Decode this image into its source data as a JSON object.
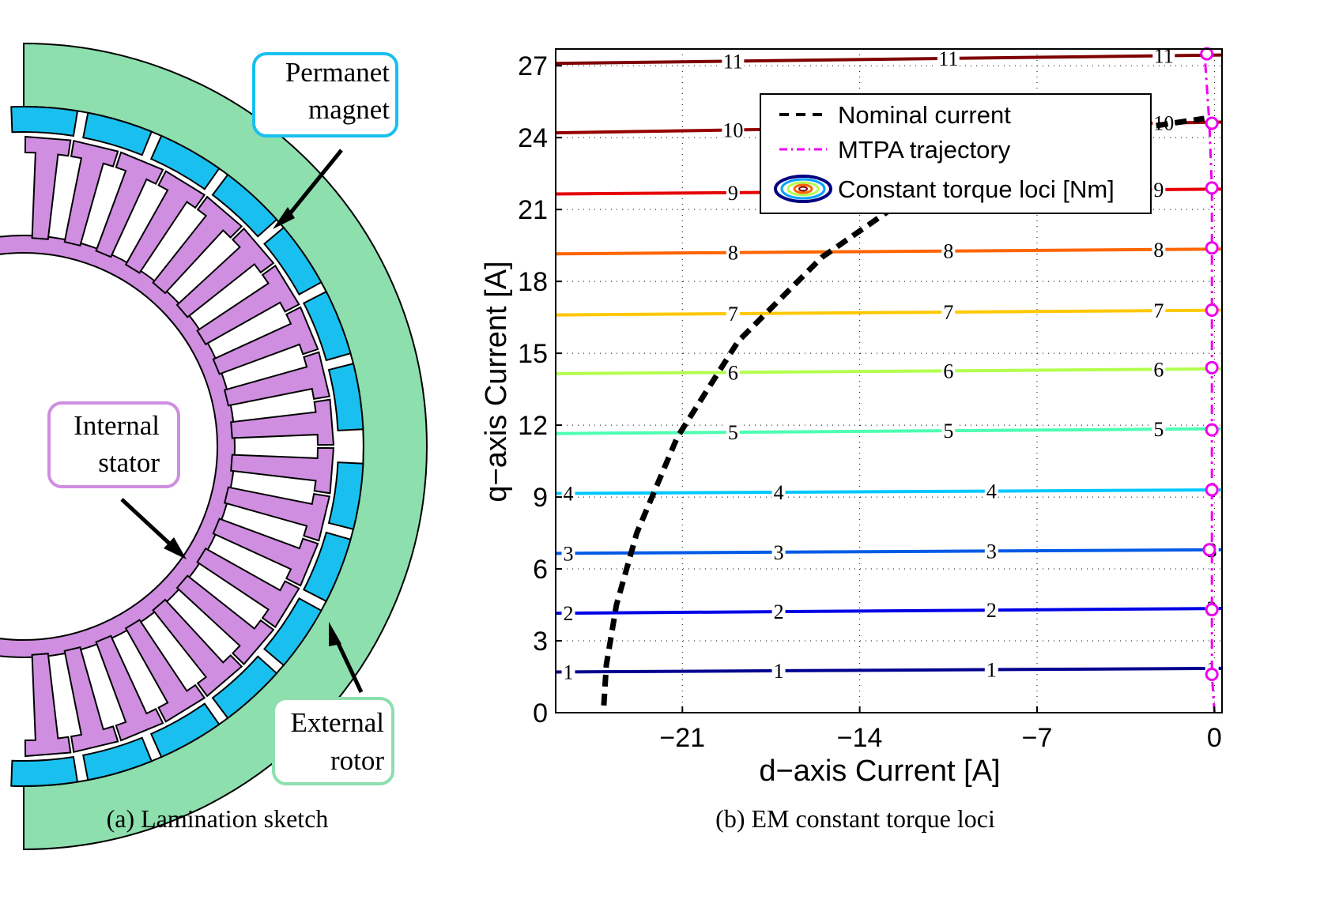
{
  "panel_a": {
    "caption": "(a) Lamination sketch",
    "labels": {
      "permanent_magnet": [
        "Permanet",
        "magnet"
      ],
      "internal_stator": [
        "Internal",
        "stator"
      ],
      "external_rotor": [
        "External",
        "rotor"
      ]
    },
    "colors": {
      "rotor": "#8ddfae",
      "magnet": "#19c0ef",
      "stator": "#cf8ee0",
      "permanent_magnet_box": "#19c0ef",
      "internal_stator_box": "#cf8ee0",
      "external_rotor_box": "#8ddfae"
    }
  },
  "panel_b": {
    "caption": "(b) EM constant torque loci",
    "chart_data": {
      "type": "line",
      "xlabel": "d−axis Current [A]",
      "ylabel": "q−axis Current [A]",
      "xlim": [
        -26,
        0.3
      ],
      "ylim": [
        0,
        27.7
      ],
      "xticks": [
        -21,
        -14,
        -7,
        0
      ],
      "xtick_labels": [
        "−21",
        "−14",
        "−7",
        "0"
      ],
      "yticks": [
        0,
        3,
        6,
        9,
        12,
        15,
        18,
        21,
        24,
        27
      ],
      "ytick_labels": [
        "0",
        "3",
        "6",
        "9",
        "12",
        "15",
        "18",
        "21",
        "24",
        "27"
      ],
      "grid": true,
      "legend": {
        "placement": "top-right",
        "entries": [
          "Nominal current",
          "MTPA trajectory",
          "Constant torque loci [Nm]"
        ]
      },
      "series": [
        {
          "name": "Nominal current",
          "color": "#000000",
          "style": "dashed",
          "x": [
            -24.1,
            -24.0,
            -23.6,
            -22.8,
            -21.2,
            -18.8,
            -15.5,
            -12.1
          ],
          "y": [
            0.3,
            2.0,
            4.5,
            7.5,
            11.5,
            15.5,
            19.0,
            21.5
          ]
        },
        {
          "name": "Nominal current",
          "color": "#000000",
          "style": "dashed",
          "x": [
            -2.3,
            -0.4
          ],
          "y": [
            24.5,
            24.8
          ]
        },
        {
          "name": "MTPA trajectory",
          "color": "#ee00ee",
          "style": "dash-dot",
          "x": [
            0.0,
            -0.1,
            -0.1,
            -0.1,
            -0.1,
            -0.1,
            -0.1,
            -0.1,
            -0.1,
            -0.1,
            -0.2,
            -0.4
          ],
          "y": [
            0.0,
            1.6,
            4.3,
            6.8,
            9.3,
            11.8,
            14.4,
            16.8,
            19.4,
            21.9,
            24.6,
            27.7
          ]
        }
      ],
      "torque_loci": [
        {
          "label": "1",
          "color": "#00008f",
          "iq_left": 1.7,
          "iq_right": 1.85,
          "label_x": [
            -25.5,
            -17.2,
            -8.8,
            -0.1
          ]
        },
        {
          "label": "2",
          "color": "#0000e6",
          "iq_left": 4.15,
          "iq_right": 4.35,
          "label_x": [
            -25.5,
            -17.2,
            -8.8,
            -0.1
          ]
        },
        {
          "label": "3",
          "color": "#005ae6",
          "iq_left": 6.65,
          "iq_right": 6.8,
          "label_x": [
            -25.5,
            -17.2,
            -8.8,
            -0.1
          ]
        },
        {
          "label": "4",
          "color": "#00c8ff",
          "iq_left": 9.15,
          "iq_right": 9.3,
          "label_x": [
            -25.5,
            -17.2,
            -8.8,
            -0.1
          ]
        },
        {
          "label": "5",
          "color": "#4dffb2",
          "iq_left": 11.65,
          "iq_right": 11.85,
          "label_x": [
            -19.0,
            -10.5,
            -2.2
          ]
        },
        {
          "label": "6",
          "color": "#b2ff4d",
          "iq_left": 14.15,
          "iq_right": 14.35,
          "label_x": [
            -19.0,
            -10.5,
            -2.2
          ]
        },
        {
          "label": "7",
          "color": "#ffc800",
          "iq_left": 16.6,
          "iq_right": 16.8,
          "label_x": [
            -19.0,
            -10.5,
            -2.2
          ]
        },
        {
          "label": "8",
          "color": "#ff6400",
          "iq_left": 19.15,
          "iq_right": 19.35,
          "label_x": [
            -19.0,
            -10.5,
            -2.2
          ]
        },
        {
          "label": "9",
          "color": "#e60000",
          "iq_left": 21.65,
          "iq_right": 21.85,
          "label_x": [
            -19.0,
            -2.2
          ]
        },
        {
          "label": "10",
          "color": "#960000",
          "iq_left": 24.2,
          "iq_right": 24.65,
          "label_x": [
            -19.0,
            -2.0
          ]
        },
        {
          "label": "11",
          "color": "#7f0000",
          "iq_left": 27.1,
          "iq_right": 27.45,
          "label_x": [
            -19.0,
            -10.5,
            -2.0
          ]
        }
      ],
      "mtpa_markers": {
        "color": "#ee00ee",
        "x": [
          -0.1,
          -0.1,
          -0.2,
          -0.1,
          -0.1,
          -0.1,
          -0.1,
          -0.1,
          -0.1,
          -0.1,
          -0.3
        ],
        "y": [
          1.6,
          4.3,
          6.8,
          9.3,
          11.8,
          14.4,
          16.8,
          19.4,
          21.9,
          24.6,
          27.5
        ]
      }
    }
  }
}
